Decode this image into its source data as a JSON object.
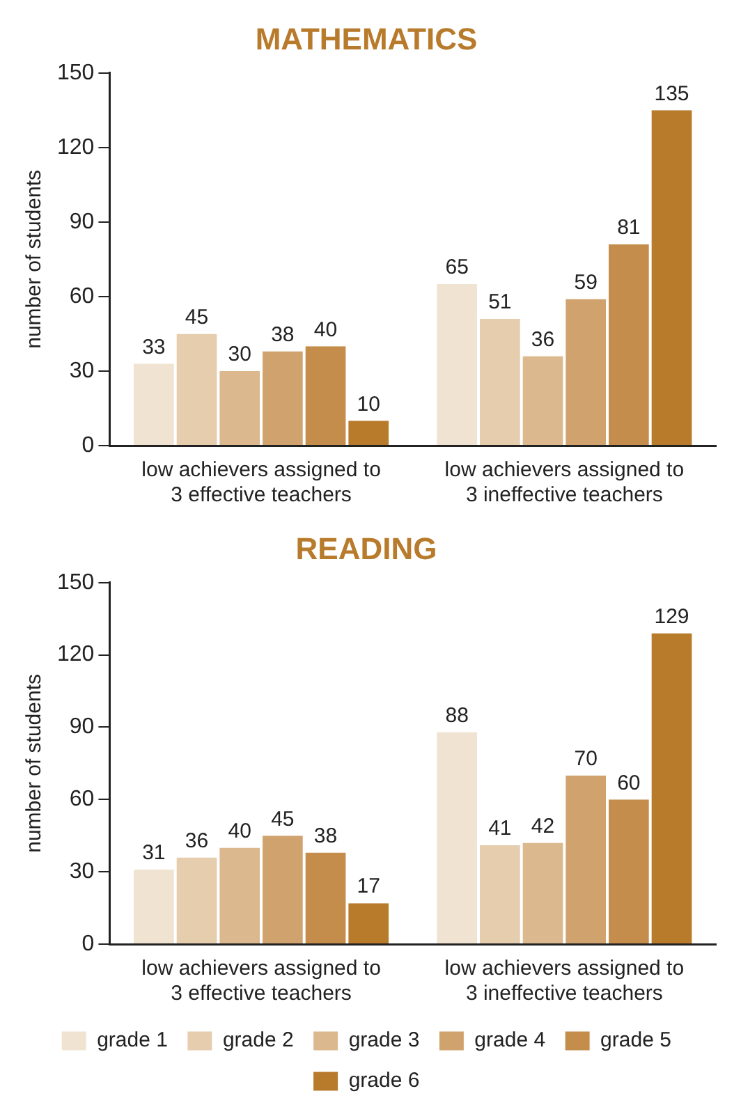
{
  "chart_data": [
    {
      "type": "bar",
      "title": "MATHEMATICS",
      "ylabel": "number of students",
      "categories": [
        "low achievers assigned to 3 effective teachers",
        "low achievers assigned to 3 ineffective teachers"
      ],
      "series": [
        {
          "color": "#f0e3d2",
          "values": [
            33,
            65
          ]
        },
        {
          "color": "#e6cdae",
          "values": [
            45,
            51
          ]
        },
        {
          "color": "#dbb88e",
          "values": [
            30,
            36
          ]
        },
        {
          "color": "#d0a36e",
          "values": [
            38,
            59
          ]
        },
        {
          "color": "#c48d4c",
          "values": [
            40,
            81
          ]
        },
        {
          "color": "#b87a2b",
          "values": [
            10,
            135
          ]
        }
      ],
      "ylim": [
        0,
        150
      ],
      "yticks": [
        0,
        30,
        60,
        90,
        120,
        150
      ],
      "grid": false,
      "legend": false,
      "data_labels": true
    },
    {
      "type": "bar",
      "title": "READING",
      "ylabel": "number of students",
      "categories": [
        "low achievers assigned to 3 effective teachers",
        "low achievers assigned to 3 ineffective teachers"
      ],
      "series": [
        {
          "name": "grade 1",
          "color": "#f0e3d2",
          "values": [
            31,
            88
          ]
        },
        {
          "name": "grade 2",
          "color": "#e6cdae",
          "values": [
            36,
            41
          ]
        },
        {
          "name": "grade 3",
          "color": "#dbb88e",
          "values": [
            40,
            42
          ]
        },
        {
          "name": "grade 4",
          "color": "#d0a36e",
          "values": [
            45,
            70
          ]
        },
        {
          "name": "grade 5",
          "color": "#c48d4c",
          "values": [
            38,
            60
          ]
        },
        {
          "name": "grade 6",
          "color": "#b87a2b",
          "values": [
            17,
            129
          ]
        }
      ],
      "ylim": [
        0,
        150
      ],
      "yticks": [
        0,
        30,
        60,
        90,
        120,
        150
      ],
      "grid": false,
      "legend": "bottom",
      "data_labels": true
    }
  ]
}
